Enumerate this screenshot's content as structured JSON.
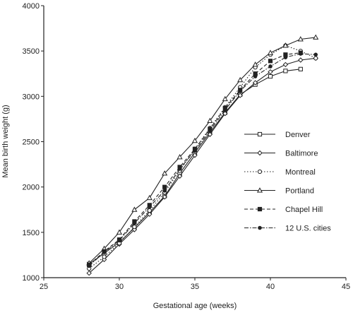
{
  "chart_data": {
    "type": "line",
    "xlabel": "Gestational age (weeks)",
    "ylabel": "Mean birth weight (g)",
    "xlim": [
      25,
      45
    ],
    "ylim": [
      1000,
      4000
    ],
    "xticks": [
      25,
      30,
      35,
      40,
      45
    ],
    "yticks": [
      1000,
      1500,
      2000,
      2500,
      3000,
      3500,
      4000
    ],
    "grid": false,
    "legend_position": "right",
    "series": [
      {
        "name": "Denver",
        "style": "solid",
        "marker": "open-square",
        "x": [
          28,
          29,
          30,
          31,
          32,
          33,
          34,
          35,
          36,
          37,
          38,
          39,
          40,
          41,
          42
        ],
        "y": [
          1150,
          1270,
          1390,
          1550,
          1720,
          1900,
          2150,
          2380,
          2600,
          2820,
          3020,
          3130,
          3220,
          3280,
          3300
        ]
      },
      {
        "name": "Baltimore",
        "style": "solid",
        "marker": "open-diamond",
        "x": [
          28,
          29,
          30,
          31,
          32,
          33,
          34,
          35,
          36,
          37,
          38,
          39,
          40,
          41,
          42,
          43
        ],
        "y": [
          1050,
          1200,
          1370,
          1530,
          1700,
          1890,
          2120,
          2350,
          2580,
          2810,
          3010,
          3150,
          3270,
          3350,
          3400,
          3420
        ]
      },
      {
        "name": "Montreal",
        "style": "dotted",
        "marker": "open-circle",
        "x": [
          28,
          29,
          30,
          31,
          32,
          33,
          34,
          35,
          36,
          37,
          38,
          39,
          40,
          41,
          42,
          43
        ],
        "y": [
          1100,
          1230,
          1380,
          1560,
          1740,
          1940,
          2180,
          2420,
          2650,
          2880,
          3100,
          3320,
          3460,
          3560,
          3500,
          3420
        ]
      },
      {
        "name": "Portland",
        "style": "solid",
        "marker": "open-triangle",
        "x": [
          28,
          29,
          30,
          31,
          32,
          33,
          34,
          35,
          36,
          37,
          38,
          39,
          40,
          41,
          42,
          43
        ],
        "y": [
          1160,
          1320,
          1500,
          1750,
          1880,
          2150,
          2330,
          2510,
          2730,
          2970,
          3180,
          3350,
          3480,
          3560,
          3630,
          3650
        ]
      },
      {
        "name": "Chapel Hill",
        "style": "dashed",
        "marker": "filled-square",
        "x": [
          28,
          29,
          30,
          31,
          32,
          33,
          34,
          35,
          36,
          37,
          38,
          39,
          40,
          41,
          42
        ],
        "y": [
          1140,
          1290,
          1420,
          1620,
          1800,
          2000,
          2220,
          2420,
          2640,
          2870,
          3070,
          3250,
          3390,
          3460,
          3480
        ]
      },
      {
        "name": "12 U.S. cities",
        "style": "dashdot",
        "marker": "filled-circle",
        "x": [
          28,
          29,
          30,
          31,
          32,
          33,
          34,
          35,
          36,
          37,
          38,
          39,
          40,
          41,
          42,
          43
        ],
        "y": [
          1130,
          1280,
          1410,
          1600,
          1780,
          1960,
          2200,
          2400,
          2620,
          2850,
          3060,
          3220,
          3330,
          3430,
          3470,
          3460
        ]
      }
    ]
  }
}
